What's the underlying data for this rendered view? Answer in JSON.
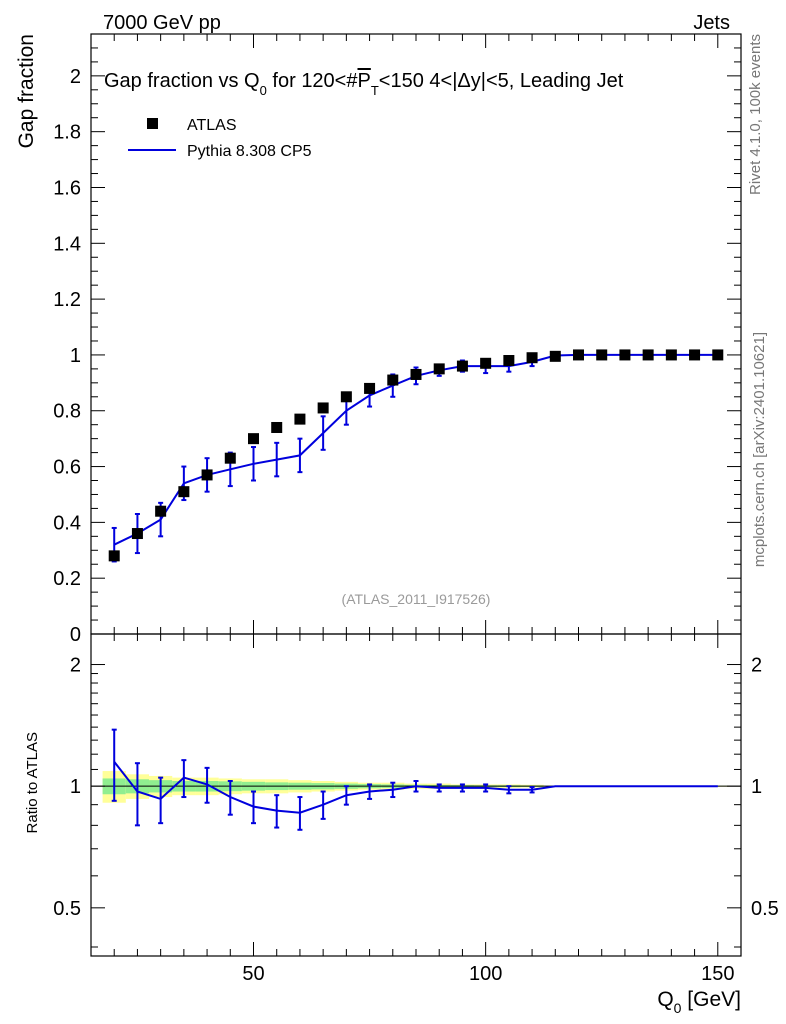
{
  "header": {
    "left_label": "7000 GeV pp",
    "right_label": "Jets"
  },
  "side_labels": {
    "rivet": "Rivet 4.1.0,  100k events",
    "source": "mcplots.cern.ch [arXiv:2401.10621]"
  },
  "colors": {
    "data": "#000000",
    "mc": "#0000dd",
    "band_inner": "#90ee90",
    "band_outer": "#ffff99"
  },
  "chart_data": [
    {
      "type": "line",
      "panel": "main",
      "title_parts": {
        "a": "Gap fraction vs Q",
        "a_sub": "0",
        "b": " for 120<#",
        "c": "P",
        "c_sub": "T",
        "d": "<150  4<|Δy|<5, Leading Jet"
      },
      "ylabel": "Gap fraction",
      "analysis_tag": "(ATLAS_2011_I917526)",
      "xlim": [
        15,
        155
      ],
      "ylim": [
        0,
        2.15
      ],
      "yticks": [
        0,
        0.2,
        0.4,
        0.6,
        0.8,
        1,
        1.2,
        1.4,
        1.6,
        1.8,
        2
      ],
      "ytick_labels": [
        "0",
        "0.2",
        "0.4",
        "0.6",
        "0.8",
        "1",
        "1.2",
        "1.4",
        "1.6",
        "1.8",
        "2"
      ],
      "legend": {
        "data": "ATLAS",
        "mc": "Pythia 8.308 CP5",
        "position": "top-left"
      },
      "series": [
        {
          "name": "ATLAS",
          "style": "markers",
          "x": [
            20,
            25,
            30,
            35,
            40,
            45,
            50,
            55,
            60,
            65,
            70,
            75,
            80,
            85,
            90,
            95,
            100,
            105,
            110,
            115,
            120,
            125,
            130,
            135,
            140,
            145,
            150
          ],
          "y": [
            0.28,
            0.36,
            0.44,
            0.51,
            0.57,
            0.63,
            0.7,
            0.74,
            0.77,
            0.81,
            0.85,
            0.88,
            0.91,
            0.93,
            0.95,
            0.96,
            0.97,
            0.98,
            0.99,
            0.995,
            1.0,
            1.0,
            1.0,
            1.0,
            1.0,
            1.0,
            1.0
          ]
        },
        {
          "name": "Pythia 8.308 CP5",
          "style": "line",
          "x": [
            20,
            25,
            30,
            35,
            40,
            45,
            50,
            55,
            60,
            65,
            70,
            75,
            80,
            85,
            90,
            95,
            100,
            105,
            110,
            115,
            120,
            125,
            130,
            135,
            140,
            145,
            150
          ],
          "y": [
            0.32,
            0.36,
            0.41,
            0.54,
            0.57,
            0.59,
            0.61,
            0.625,
            0.64,
            0.72,
            0.8,
            0.855,
            0.89,
            0.925,
            0.945,
            0.96,
            0.96,
            0.96,
            0.975,
            0.998,
            1.0,
            1.0,
            1.0,
            1.0,
            1.0,
            1.0,
            1.0
          ],
          "err": [
            0.06,
            0.07,
            0.06,
            0.06,
            0.06,
            0.06,
            0.06,
            0.06,
            0.06,
            0.06,
            0.05,
            0.04,
            0.04,
            0.03,
            0.02,
            0.02,
            0.025,
            0.02,
            0.015,
            0,
            0,
            0,
            0,
            0,
            0,
            0,
            0
          ]
        }
      ]
    },
    {
      "type": "line",
      "panel": "ratio",
      "xlabel": "Q",
      "xlabel_sub": "0",
      "xlabel_unit": " [GeV]",
      "ylabel": "Ratio to ATLAS",
      "xlim": [
        15,
        155
      ],
      "ylim": [
        0.38,
        2.38
      ],
      "yticks": [
        0.5,
        1,
        2
      ],
      "ytick_labels": [
        "0.5",
        "1",
        "2"
      ],
      "xticks": [
        50,
        100,
        150
      ],
      "xtick_labels": [
        "50",
        "100",
        "150"
      ],
      "bands": {
        "x_edges": [
          17.5,
          22.5,
          27.5,
          32.5,
          37.5,
          42.5,
          47.5,
          52.5,
          57.5,
          62.5,
          67.5,
          72.5,
          77.5,
          82.5,
          87.5,
          92.5,
          97.5,
          102.5,
          107.5,
          112.5,
          152.5
        ],
        "outer": [
          0.09,
          0.07,
          0.06,
          0.05,
          0.05,
          0.045,
          0.04,
          0.04,
          0.035,
          0.03,
          0.025,
          0.02,
          0.02,
          0.015,
          0.015,
          0.01,
          0.01,
          0.01,
          0.008,
          0.003
        ],
        "inner": [
          0.045,
          0.04,
          0.035,
          0.03,
          0.03,
          0.028,
          0.025,
          0.022,
          0.02,
          0.018,
          0.015,
          0.012,
          0.01,
          0.008,
          0.007,
          0.006,
          0.005,
          0.005,
          0.004,
          0.002
        ]
      },
      "series": [
        {
          "name": "Pythia 8.308 CP5 / ATLAS",
          "x": [
            20,
            25,
            30,
            35,
            40,
            45,
            50,
            55,
            60,
            65,
            70,
            75,
            80,
            85,
            90,
            95,
            100,
            105,
            110,
            115,
            120,
            125,
            130,
            135,
            140,
            145,
            150
          ],
          "y": [
            1.15,
            0.97,
            0.93,
            1.05,
            1.01,
            0.94,
            0.89,
            0.87,
            0.86,
            0.9,
            0.95,
            0.97,
            0.98,
            1.0,
            0.99,
            0.99,
            0.99,
            0.98,
            0.98,
            1.0,
            1.0,
            1.0,
            1.0,
            1.0,
            1.0,
            1.0,
            1.0
          ],
          "err": [
            0.23,
            0.17,
            0.12,
            0.11,
            0.1,
            0.09,
            0.08,
            0.08,
            0.08,
            0.07,
            0.05,
            0.04,
            0.04,
            0.03,
            0.02,
            0.02,
            0.02,
            0.02,
            0.015,
            0,
            0,
            0,
            0,
            0,
            0,
            0,
            0
          ]
        }
      ]
    }
  ]
}
